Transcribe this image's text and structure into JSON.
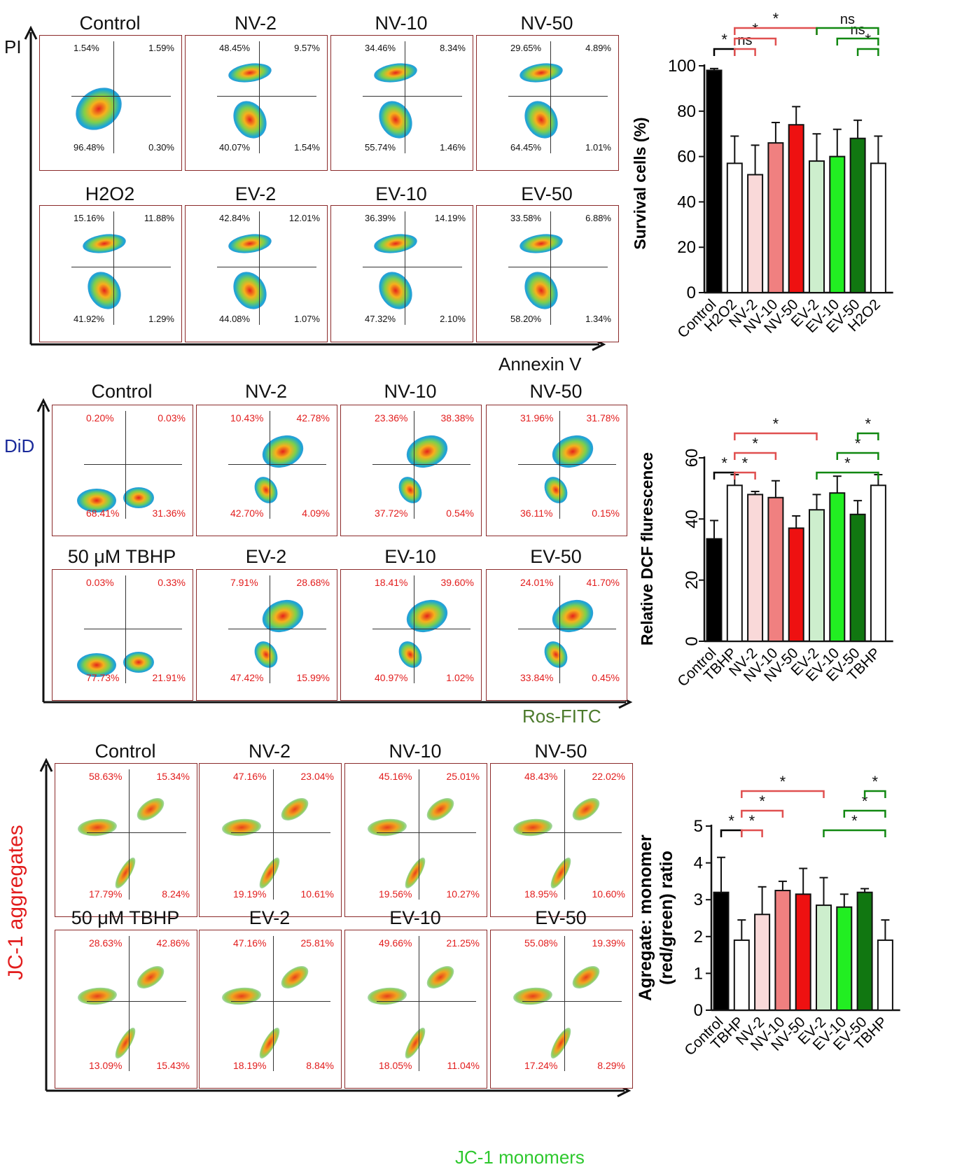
{
  "sections": [
    {
      "id": "pi",
      "y_axis_label": "PI",
      "x_axis_label": "Annexin V",
      "panels": [
        {
          "title": "Control",
          "quadrants": [
            "1.54%",
            "1.59%",
            "96.48%",
            "0.30%"
          ]
        },
        {
          "title": "NV-2",
          "quadrants": [
            "48.45%",
            "9.57%",
            "40.07%",
            "1.54%"
          ]
        },
        {
          "title": "NV-10",
          "quadrants": [
            "34.46%",
            "8.34%",
            "55.74%",
            "1.46%"
          ]
        },
        {
          "title": "NV-50",
          "quadrants": [
            "29.65%",
            "4.89%",
            "64.45%",
            "1.01%"
          ]
        },
        {
          "title": "H2O2",
          "quadrants": [
            "15.16%",
            "11.88%",
            "41.92%",
            "1.29%"
          ]
        },
        {
          "title": "EV-2",
          "quadrants": [
            "42.84%",
            "12.01%",
            "44.08%",
            "1.07%"
          ]
        },
        {
          "title": "EV-10",
          "quadrants": [
            "36.39%",
            "14.19%",
            "47.32%",
            "2.10%"
          ]
        },
        {
          "title": "EV-50",
          "quadrants": [
            "33.58%",
            "6.88%",
            "58.20%",
            "1.34%"
          ]
        }
      ]
    },
    {
      "id": "did",
      "y_axis_label": "DiD",
      "x_axis_label": "Ros-FITC",
      "panels": [
        {
          "title": "Control",
          "quadrants": [
            "0.20%",
            "0.03%",
            "68.41%",
            "31.36%"
          ]
        },
        {
          "title": "NV-2",
          "quadrants": [
            "10.43%",
            "42.78%",
            "42.70%",
            "4.09%"
          ]
        },
        {
          "title": "NV-10",
          "quadrants": [
            "23.36%",
            "38.38%",
            "37.72%",
            "0.54%"
          ]
        },
        {
          "title": "NV-50",
          "quadrants": [
            "31.96%",
            "31.78%",
            "36.11%",
            "0.15%"
          ]
        },
        {
          "title": "50 μM TBHP",
          "quadrants": [
            "0.03%",
            "0.33%",
            "77.73%",
            "21.91%"
          ]
        },
        {
          "title": "EV-2",
          "quadrants": [
            "7.91%",
            "28.68%",
            "47.42%",
            "15.99%"
          ]
        },
        {
          "title": "EV-10",
          "quadrants": [
            "18.41%",
            "39.60%",
            "40.97%",
            "1.02%"
          ]
        },
        {
          "title": "EV-50",
          "quadrants": [
            "24.01%",
            "41.70%",
            "33.84%",
            "0.45%"
          ]
        }
      ]
    },
    {
      "id": "jc1",
      "y_axis_label": "JC-1 aggregates",
      "x_axis_label": "JC-1 monomers",
      "panels": [
        {
          "title": "Control",
          "quadrants": [
            "58.63%",
            "15.34%",
            "17.79%",
            "8.24%"
          ]
        },
        {
          "title": "NV-2",
          "quadrants": [
            "47.16%",
            "23.04%",
            "19.19%",
            "10.61%"
          ]
        },
        {
          "title": "NV-10",
          "quadrants": [
            "45.16%",
            "25.01%",
            "19.56%",
            "10.27%"
          ]
        },
        {
          "title": "NV-50",
          "quadrants": [
            "48.43%",
            "22.02%",
            "18.95%",
            "10.60%"
          ]
        },
        {
          "title": "50 μM TBHP",
          "quadrants": [
            "28.63%",
            "42.86%",
            "13.09%",
            "15.43%"
          ]
        },
        {
          "title": "EV-2",
          "quadrants": [
            "47.16%",
            "25.81%",
            "18.19%",
            "8.84%"
          ]
        },
        {
          "title": "EV-10",
          "quadrants": [
            "49.66%",
            "21.25%",
            "18.05%",
            "11.04%"
          ]
        },
        {
          "title": "EV-50",
          "quadrants": [
            "55.08%",
            "19.39%",
            "17.24%",
            "8.29%"
          ]
        }
      ]
    }
  ],
  "chart_data": [
    {
      "type": "bar",
      "ylabel": "Survival cells (%)",
      "categories": [
        "Control",
        "H2O2",
        "NV-2",
        "NV-10",
        "NV-50",
        "EV-2",
        "EV-10",
        "EV-50",
        "H2O2"
      ],
      "values": [
        98,
        57,
        52,
        66,
        74,
        58,
        60,
        68,
        57
      ],
      "errors": [
        0.8,
        12,
        13,
        9,
        8,
        12,
        12,
        8,
        12
      ],
      "colors": [
        "#000000",
        "#ffffff",
        "#f9d9d9",
        "#f08080",
        "#ee1111",
        "#cdeecd",
        "#22ee22",
        "#117711",
        "#ffffff"
      ],
      "ylim": [
        0,
        100
      ],
      "yticks": [
        0,
        20,
        40,
        60,
        80,
        100
      ],
      "significance": [
        {
          "from": 0,
          "to": 1,
          "label": "*",
          "color": "#000000",
          "level": 0
        },
        {
          "from": 1,
          "to": 2,
          "label": "ns",
          "color": "#e05050",
          "level": 0
        },
        {
          "from": 1,
          "to": 3,
          "label": "*",
          "color": "#e05050",
          "level": 1
        },
        {
          "from": 1,
          "to": 5,
          "label": "*",
          "color": "#e05050",
          "level": 2
        },
        {
          "from": 7,
          "to": 8,
          "label": "*",
          "color": "#118811",
          "level": 0
        },
        {
          "from": 6,
          "to": 8,
          "label": "ns",
          "color": "#118811",
          "level": 1
        },
        {
          "from": 5,
          "to": 8,
          "label": "ns",
          "color": "#118811",
          "level": 2
        }
      ]
    },
    {
      "type": "bar",
      "ylabel": "Relative DCF flurescence",
      "categories": [
        "Control",
        "TBHP",
        "NV-2",
        "NV-10",
        "NV-50",
        "EV-2",
        "EV-10",
        "EV-50",
        "TBHP"
      ],
      "values": [
        33.5,
        51,
        48,
        47,
        37,
        43,
        48.5,
        41.5,
        51
      ],
      "errors": [
        6,
        3.5,
        1,
        5.5,
        4,
        5,
        5.5,
        4.5,
        3.5
      ],
      "colors": [
        "#000000",
        "#ffffff",
        "#f9d9d9",
        "#f08080",
        "#ee1111",
        "#cdeecd",
        "#22ee22",
        "#117711",
        "#ffffff"
      ],
      "ylim": [
        0,
        60
      ],
      "yticks": [
        0,
        20,
        40,
        60
      ],
      "significance": [
        {
          "from": 0,
          "to": 1,
          "label": "*",
          "color": "#000000",
          "level": 0
        },
        {
          "from": 1,
          "to": 2,
          "label": "*",
          "color": "#e05050",
          "level": 0
        },
        {
          "from": 1,
          "to": 3,
          "label": "*",
          "color": "#e05050",
          "level": 1
        },
        {
          "from": 1,
          "to": 5,
          "label": "*",
          "color": "#e05050",
          "level": 2
        },
        {
          "from": 5,
          "to": 8,
          "label": "*",
          "color": "#118811",
          "level": 0
        },
        {
          "from": 6,
          "to": 8,
          "label": "*",
          "color": "#118811",
          "level": 1
        },
        {
          "from": 7,
          "to": 8,
          "label": "*",
          "color": "#118811",
          "level": 2
        }
      ]
    },
    {
      "type": "bar",
      "ylabel": "Agregate: monomer (red/green) ratio",
      "ylabel_lines": [
        "Agregate: monomer",
        "(red/green) ratio"
      ],
      "categories": [
        "Control",
        "TBHP",
        "NV-2",
        "NV-10",
        "NV-50",
        "EV-2",
        "EV-10",
        "EV-50",
        "TBHP"
      ],
      "values": [
        3.2,
        1.9,
        2.6,
        3.25,
        3.15,
        2.85,
        2.8,
        3.2,
        1.9
      ],
      "errors": [
        0.95,
        0.55,
        0.75,
        0.25,
        0.7,
        0.75,
        0.35,
        0.1,
        0.55
      ],
      "colors": [
        "#000000",
        "#ffffff",
        "#f9d9d9",
        "#f08080",
        "#ee1111",
        "#cdeecd",
        "#22ee22",
        "#117711",
        "#ffffff"
      ],
      "ylim": [
        0,
        5
      ],
      "yticks": [
        0,
        1,
        2,
        3,
        4,
        5
      ],
      "significance": [
        {
          "from": 0,
          "to": 1,
          "label": "*",
          "color": "#000000",
          "level": 0
        },
        {
          "from": 1,
          "to": 2,
          "label": "*",
          "color": "#e05050",
          "level": 0
        },
        {
          "from": 1,
          "to": 3,
          "label": "*",
          "color": "#e05050",
          "level": 1
        },
        {
          "from": 1,
          "to": 5,
          "label": "*",
          "color": "#e05050",
          "level": 2
        },
        {
          "from": 5,
          "to": 8,
          "label": "*",
          "color": "#118811",
          "level": 0
        },
        {
          "from": 6,
          "to": 8,
          "label": "*",
          "color": "#118811",
          "level": 1
        },
        {
          "from": 7,
          "to": 8,
          "label": "*",
          "color": "#118811",
          "level": 2
        }
      ]
    }
  ]
}
